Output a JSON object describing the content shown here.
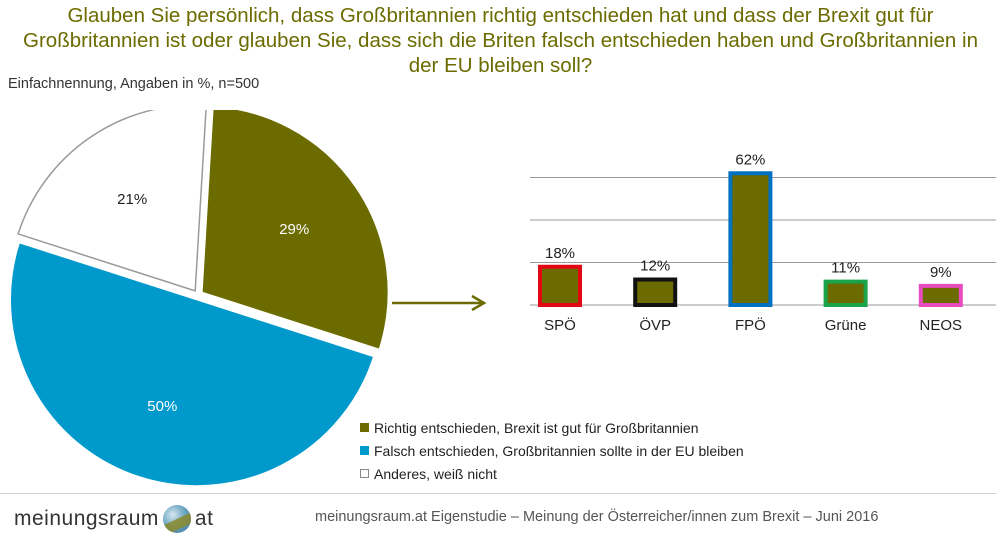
{
  "header": {
    "question": "Glauben Sie persönlich, dass Großbritannien richtig entschieden hat und dass der Brexit gut für Großbritannien ist oder glauben Sie, dass sich die Briten falsch entschieden haben und Großbritannien in der EU bleiben soll?",
    "subtitle": "Einfachnennung, Angaben in %, n=500"
  },
  "colors": {
    "olive": "#6b6b00",
    "blue": "#0099cc",
    "white": "#ffffff",
    "spo_border": "#e30613",
    "ovp_border": "#111111",
    "fpo_border": "#0070c0",
    "grune_border": "#1aa34a",
    "neos_border": "#e84bbf",
    "bar_fill": "#6b6b00"
  },
  "chart_data": [
    {
      "type": "pie",
      "slices": [
        {
          "label": "Richtig entschieden, Brexit ist gut für Großbritannien",
          "value": 29,
          "value_label": "29%",
          "color": "#6b6b00"
        },
        {
          "label": "Falsch entschieden, Großbritannien sollte in der EU bleiben",
          "value": 50,
          "value_label": "50%",
          "color": "#0099cc"
        },
        {
          "label": "Anderes, weiß nicht",
          "value": 21,
          "value_label": "21%",
          "color": "#ffffff"
        }
      ],
      "legend": "bottom-right"
    },
    {
      "type": "bar",
      "categories": [
        "SPÖ",
        "ÖVP",
        "FPÖ",
        "Grüne",
        "NEOS"
      ],
      "values": [
        18,
        12,
        62,
        11,
        9
      ],
      "value_labels": [
        "18%",
        "12%",
        "62%",
        "11%",
        "9%"
      ],
      "border_colors": [
        "#e30613",
        "#111111",
        "#0070c0",
        "#1aa34a",
        "#e84bbf"
      ],
      "ylim": [
        0,
        80
      ],
      "grid": true
    }
  ],
  "legend": {
    "items": [
      {
        "label": "Richtig entschieden, Brexit ist gut für Großbritannien"
      },
      {
        "label": "Falsch entschieden, Großbritannien sollte in der EU bleiben"
      },
      {
        "label": "Anderes, weiß nicht"
      }
    ]
  },
  "footer": {
    "logo_left": "meinungsraum",
    "logo_right": "at",
    "source": "meinungsraum.at Eigenstudie – Meinung der Österreicher/innen zum Brexit – Juni 2016"
  }
}
